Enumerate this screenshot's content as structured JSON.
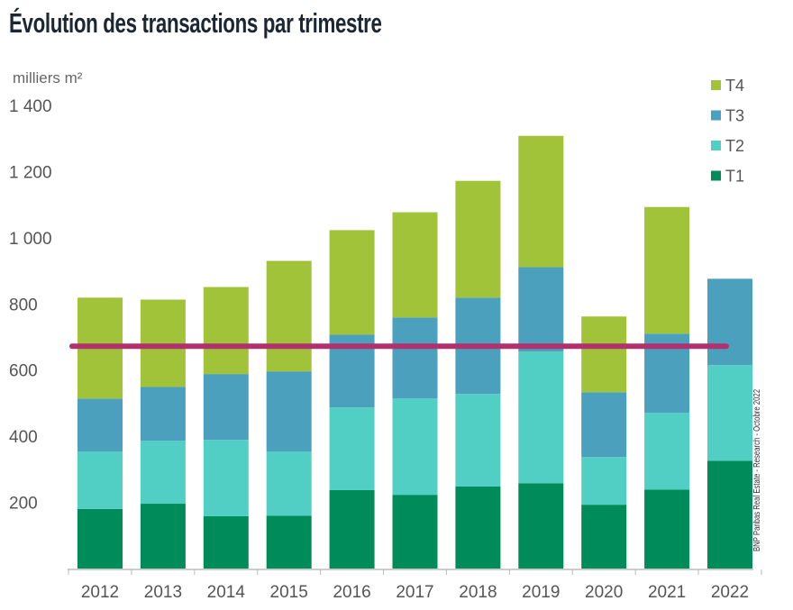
{
  "chart_data": {
    "type": "bar",
    "stacked": true,
    "title": "Évolution des transactions par trimestre",
    "ylabel": "milliers m²",
    "ylim": [
      0,
      1400
    ],
    "yticks": [
      200,
      400,
      600,
      800,
      1000,
      1200,
      1400
    ],
    "ytick_labels": [
      "200",
      "400",
      "600",
      "800",
      "1 000",
      "1 200",
      "1 400"
    ],
    "categories": [
      "2012",
      "2013",
      "2014",
      "2015",
      "2016",
      "2017",
      "2018",
      "2019",
      "2020",
      "2021",
      "2022"
    ],
    "series": [
      {
        "name": "T1",
        "color": "#008c5a",
        "values": [
          180,
          196,
          158,
          160,
          237,
          223,
          248,
          258,
          193,
          239,
          326
        ]
      },
      {
        "name": "T2",
        "color": "#52cfc5",
        "values": [
          174,
          190,
          231,
          194,
          250,
          291,
          280,
          398,
          144,
          232,
          289
        ]
      },
      {
        "name": "T3",
        "color": "#4aa0bd",
        "values": [
          160,
          163,
          199,
          242,
          220,
          245,
          291,
          255,
          196,
          239,
          261
        ]
      },
      {
        "name": "T4",
        "color": "#a1c33a",
        "values": [
          305,
          264,
          263,
          334,
          316,
          318,
          353,
          397,
          229,
          383,
          null
        ]
      }
    ],
    "reference_line": {
      "value": 672,
      "color": "#b3306e"
    },
    "legend_order": [
      "T4",
      "T3",
      "T2",
      "T1"
    ],
    "legend_placement": "top-right",
    "grid": false,
    "source": "BNP Paribas Real Estate - Research - Octobre 2022"
  }
}
